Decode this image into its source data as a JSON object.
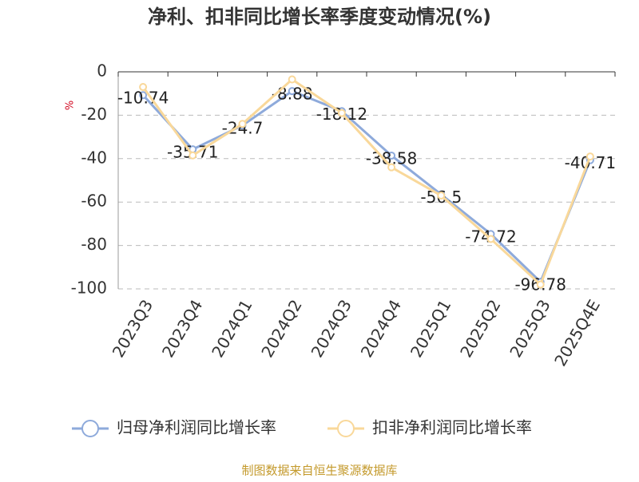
{
  "chart_data": {
    "type": "line",
    "title": "净利、扣非同比增长率季度变动情况(%)",
    "y_label": "%",
    "categories": [
      "2023Q3",
      "2023Q4",
      "2024Q1",
      "2024Q2",
      "2024Q3",
      "2024Q4",
      "2025Q1",
      "2025Q2",
      "2025Q3",
      "2025Q4E"
    ],
    "series": [
      {
        "name": "归母净利润同比增长率",
        "color": "#8eaadb",
        "values": [
          -10.74,
          -35.71,
          -24.7,
          -8.88,
          -18.12,
          -38.58,
          -56.5,
          -74.72,
          -96.78,
          -40.71
        ],
        "show_labels": true
      },
      {
        "name": "扣非净利润同比增长率",
        "color": "#f9d89a",
        "values": [
          -7,
          -38.5,
          -24,
          -3.5,
          -19,
          -44,
          -57,
          -77,
          -98,
          -39
        ],
        "show_labels": false
      }
    ],
    "ylim": [
      -100,
      0
    ],
    "yticks": [
      0,
      -20,
      -40,
      -60,
      -80,
      -100
    ],
    "grid": true,
    "source": "制图数据来自恒生聚源数据库"
  }
}
